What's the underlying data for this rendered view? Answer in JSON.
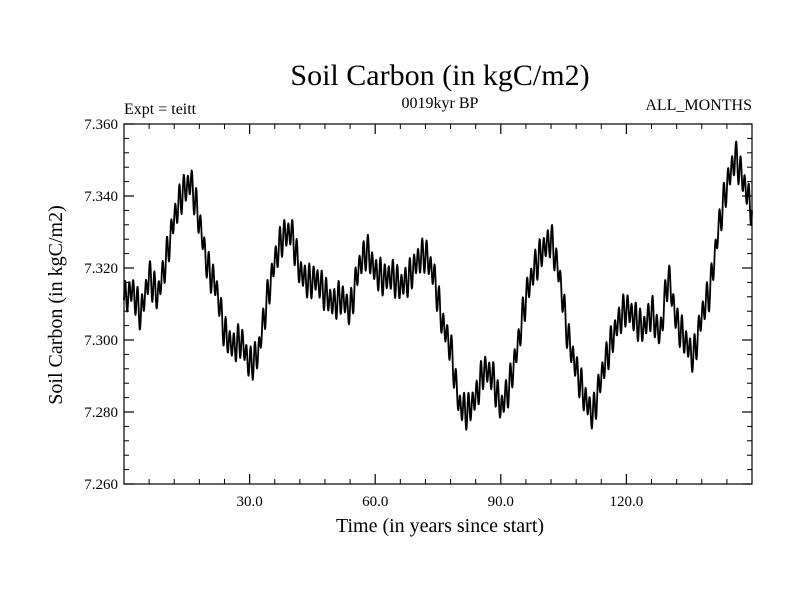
{
  "chart_data": {
    "type": "line",
    "title": "Soil Carbon (in kgC/m2)",
    "subtitle_left": "Expt = teitt",
    "subtitle_center": "0019kyr BP",
    "subtitle_right": "ALL_MONTHS",
    "xlabel": "Time (in years since start)",
    "ylabel": "Soil Carbon (in kgC/m2)",
    "xlim": [
      0,
      150
    ],
    "ylim": [
      7.26,
      7.36
    ],
    "x_ticks": [
      30,
      60,
      90,
      120
    ],
    "x_tick_labels": [
      "30.0",
      "60.0",
      "90.0",
      "120.0"
    ],
    "y_ticks": [
      7.26,
      7.28,
      7.3,
      7.32,
      7.34,
      7.36
    ],
    "y_tick_labels": [
      "7.260",
      "7.280",
      "7.300",
      "7.320",
      "7.340",
      "7.360"
    ],
    "grid": false,
    "seasonal_amplitude": 0.004,
    "series": [
      {
        "name": "Soil Carbon",
        "x": [
          0,
          2,
          4,
          6,
          8,
          10,
          12,
          14,
          16,
          18,
          20,
          22,
          24,
          26,
          28,
          30,
          32,
          34,
          36,
          38,
          40,
          42,
          44,
          46,
          48,
          50,
          52,
          54,
          56,
          58,
          60,
          62,
          64,
          66,
          68,
          70,
          72,
          74,
          76,
          78,
          80,
          82,
          84,
          86,
          88,
          90,
          92,
          94,
          96,
          98,
          100,
          102,
          104,
          106,
          108,
          110,
          112,
          114,
          116,
          118,
          120,
          122,
          124,
          126,
          128,
          130,
          132,
          134,
          136,
          138,
          140,
          142,
          144,
          146,
          148,
          150
        ],
        "values": [
          7.311,
          7.314,
          7.307,
          7.318,
          7.312,
          7.322,
          7.334,
          7.341,
          7.344,
          7.333,
          7.32,
          7.315,
          7.302,
          7.298,
          7.3,
          7.293,
          7.296,
          7.31,
          7.322,
          7.329,
          7.33,
          7.319,
          7.316,
          7.317,
          7.313,
          7.31,
          7.312,
          7.308,
          7.32,
          7.325,
          7.319,
          7.317,
          7.318,
          7.315,
          7.317,
          7.322,
          7.324,
          7.318,
          7.305,
          7.298,
          7.282,
          7.28,
          7.284,
          7.292,
          7.29,
          7.281,
          7.287,
          7.298,
          7.312,
          7.32,
          7.325,
          7.328,
          7.318,
          7.301,
          7.292,
          7.284,
          7.279,
          7.29,
          7.298,
          7.305,
          7.309,
          7.306,
          7.303,
          7.308,
          7.301,
          7.318,
          7.305,
          7.3,
          7.295,
          7.307,
          7.314,
          7.331,
          7.343,
          7.351,
          7.344,
          7.336
        ]
      }
    ]
  }
}
